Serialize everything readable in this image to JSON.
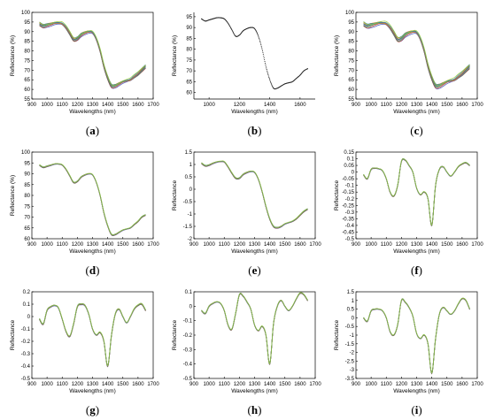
{
  "chart_data": [
    {
      "id": "a",
      "caption": "a",
      "type": "line",
      "xlabel": "Wavelengths (nm)",
      "ylabel": "Reflectance (%)",
      "xlim": [
        900,
        1700
      ],
      "ylim": [
        55,
        100
      ],
      "xticks": [
        900,
        1000,
        1100,
        1200,
        1300,
        1400,
        1500,
        1600,
        1700
      ],
      "yticks": [
        55,
        60,
        65,
        70,
        75,
        80,
        85,
        90,
        95,
        100
      ],
      "ytick_labels": [
        "55",
        "60",
        "65",
        "70",
        "75",
        "80",
        "85",
        "90",
        "95",
        "100"
      ],
      "box": true,
      "colored_bundle": true,
      "bundle_spread": 2.5,
      "x": [
        950,
        975,
        1000,
        1025,
        1050,
        1075,
        1100,
        1125,
        1150,
        1175,
        1200,
        1225,
        1250,
        1275,
        1300,
        1325,
        1350,
        1375,
        1400,
        1425,
        1450,
        1475,
        1500,
        1525,
        1550,
        1575,
        1600,
        1625,
        1650
      ],
      "y": [
        94,
        93,
        93.5,
        94,
        94.5,
        94.5,
        94,
        92,
        89,
        86,
        86.5,
        88.5,
        89.5,
        90,
        89.5,
        86,
        80,
        72,
        66,
        62,
        62,
        63,
        64,
        64.5,
        65,
        66.5,
        68,
        70,
        72
      ]
    },
    {
      "id": "b",
      "caption": "b",
      "type": "scatter",
      "xlabel": "Wavelengths (nm)",
      "ylabel": "Reflectance (%)",
      "xlim": [
        900,
        1700
      ],
      "ylim": [
        57,
        97
      ],
      "xticks": [
        1000,
        1200,
        1400,
        1600
      ],
      "yticks": [
        60,
        65,
        70,
        75,
        80,
        85,
        90,
        95
      ],
      "ytick_labels": [
        "60",
        "65",
        "70",
        "75",
        "80",
        "85",
        "90",
        "95"
      ],
      "box": false,
      "dotted": true,
      "x": [
        950,
        975,
        1000,
        1025,
        1050,
        1075,
        1100,
        1125,
        1150,
        1175,
        1200,
        1225,
        1250,
        1275,
        1300,
        1325,
        1350,
        1375,
        1400,
        1425,
        1450,
        1475,
        1500,
        1525,
        1550,
        1575,
        1600,
        1625,
        1650
      ],
      "y": [
        94,
        93,
        93.5,
        94,
        94.5,
        94.5,
        94,
        92,
        89,
        86,
        86.5,
        88.5,
        89.5,
        90,
        89.5,
        86,
        80,
        72,
        66,
        62,
        62,
        63,
        64,
        64.5,
        65,
        66.5,
        68,
        70,
        71
      ]
    },
    {
      "id": "c",
      "caption": "c",
      "type": "line",
      "xlabel": "Wavelengths (nm)",
      "ylabel": "Reflectance (%)",
      "xlim": [
        900,
        1700
      ],
      "ylim": [
        55,
        100
      ],
      "xticks": [
        900,
        1000,
        1100,
        1200,
        1300,
        1400,
        1500,
        1600,
        1700
      ],
      "yticks": [
        55,
        60,
        65,
        70,
        75,
        80,
        85,
        90,
        95,
        100
      ],
      "ytick_labels": [
        "55",
        "60",
        "65",
        "70",
        "75",
        "80",
        "85",
        "90",
        "95",
        "100"
      ],
      "box": true,
      "colored_bundle": true,
      "bundle_spread": 3.0,
      "x": [
        950,
        975,
        1000,
        1025,
        1050,
        1075,
        1100,
        1125,
        1150,
        1175,
        1200,
        1225,
        1250,
        1275,
        1300,
        1325,
        1350,
        1375,
        1400,
        1425,
        1450,
        1475,
        1500,
        1525,
        1550,
        1575,
        1600,
        1625,
        1650
      ],
      "y": [
        94,
        93,
        93.5,
        94,
        94.5,
        94.5,
        94,
        92,
        89,
        86,
        86.5,
        88.5,
        89.5,
        90,
        89.5,
        86,
        80,
        72,
        66,
        62,
        62,
        63,
        64,
        64.5,
        65,
        66.5,
        68,
        70,
        72
      ]
    },
    {
      "id": "d",
      "caption": "d",
      "type": "line",
      "xlabel": "Wavelengths (nm)",
      "ylabel": "Reflectance (%)",
      "xlim": [
        900,
        1700
      ],
      "ylim": [
        60,
        100
      ],
      "xticks": [
        900,
        1000,
        1100,
        1200,
        1300,
        1400,
        1500,
        1600,
        1700
      ],
      "yticks": [
        60,
        65,
        70,
        75,
        80,
        85,
        90,
        95,
        100
      ],
      "ytick_labels": [
        "60",
        "65",
        "70",
        "75",
        "80",
        "85",
        "90",
        "95",
        "100"
      ],
      "box": true,
      "colored_bundle": true,
      "bundle_spread": 0.6,
      "x": [
        950,
        975,
        1000,
        1025,
        1050,
        1075,
        1100,
        1125,
        1150,
        1175,
        1200,
        1225,
        1250,
        1275,
        1300,
        1325,
        1350,
        1375,
        1400,
        1425,
        1450,
        1475,
        1500,
        1525,
        1550,
        1575,
        1600,
        1625,
        1650
      ],
      "y": [
        94,
        93,
        93.5,
        94,
        94.5,
        94.5,
        94,
        92,
        89,
        86,
        86.5,
        88.5,
        89.5,
        90,
        89.5,
        86,
        80,
        72,
        66,
        62,
        62,
        63,
        64,
        64.5,
        65,
        66.5,
        68,
        70,
        71
      ]
    },
    {
      "id": "e",
      "caption": "e",
      "type": "line",
      "xlabel": "Wavelengths (nm)",
      "ylabel": "Reflectance",
      "xlim": [
        900,
        1700
      ],
      "ylim": [
        -2,
        1.5
      ],
      "xticks": [
        900,
        1000,
        1100,
        1200,
        1300,
        1400,
        1500,
        1600,
        1700
      ],
      "yticks": [
        -2,
        -1.5,
        -1,
        -0.5,
        0,
        0.5,
        1,
        1.5
      ],
      "ytick_labels": [
        "-2",
        "-1.5",
        "-1",
        "-0.5",
        "0",
        "0.5",
        "1",
        "1.5"
      ],
      "box": true,
      "colored_bundle": true,
      "bundle_spread": 0.06,
      "x": [
        950,
        975,
        1000,
        1025,
        1050,
        1075,
        1100,
        1125,
        1150,
        1175,
        1200,
        1225,
        1250,
        1275,
        1300,
        1325,
        1350,
        1375,
        1400,
        1425,
        1450,
        1475,
        1500,
        1525,
        1550,
        1575,
        1600,
        1625,
        1650
      ],
      "y": [
        1.05,
        0.95,
        0.98,
        1.05,
        1.1,
        1.12,
        1.1,
        0.9,
        0.65,
        0.45,
        0.45,
        0.6,
        0.68,
        0.72,
        0.68,
        0.4,
        -0.1,
        -0.7,
        -1.2,
        -1.5,
        -1.55,
        -1.5,
        -1.4,
        -1.35,
        -1.3,
        -1.2,
        -1.05,
        -0.9,
        -0.8
      ]
    },
    {
      "id": "f",
      "caption": "f",
      "type": "line",
      "xlabel": "Wavelengths (nm)",
      "ylabel": "Reflectance",
      "xlim": [
        900,
        1700
      ],
      "ylim": [
        -0.5,
        0.15
      ],
      "xticks": [
        900,
        1000,
        1100,
        1200,
        1300,
        1400,
        1500,
        1600,
        1700
      ],
      "yticks": [
        -0.5,
        -0.45,
        -0.4,
        -0.35,
        -0.3,
        -0.25,
        -0.2,
        -0.15,
        -0.1,
        -0.05,
        0,
        0.05,
        0.1,
        0.15
      ],
      "ytick_labels": [
        "-0.5",
        "-0.45",
        "-0.4",
        "-0.35",
        "-0.3",
        "-0.25",
        "-0.2",
        "-0.15",
        "-0.1",
        "-0.05",
        "0",
        "0.05",
        "0.1",
        "0.15"
      ],
      "box": true,
      "colored_bundle": true,
      "bundle_spread": 0.008,
      "x": [
        950,
        975,
        1000,
        1025,
        1050,
        1075,
        1100,
        1125,
        1150,
        1175,
        1200,
        1225,
        1250,
        1275,
        1300,
        1325,
        1350,
        1375,
        1400,
        1425,
        1450,
        1475,
        1500,
        1525,
        1550,
        1575,
        1600,
        1625,
        1650
      ],
      "y": [
        -0.02,
        -0.05,
        0.02,
        0.03,
        0.025,
        0.01,
        -0.05,
        -0.15,
        -0.18,
        -0.1,
        0.08,
        0.09,
        0.05,
        0.0,
        -0.12,
        -0.17,
        -0.15,
        -0.2,
        -0.4,
        -0.1,
        0.02,
        0.04,
        0.0,
        -0.03,
        0.0,
        0.04,
        0.06,
        0.07,
        0.05
      ]
    },
    {
      "id": "g",
      "caption": "g",
      "type": "line",
      "xlabel": "Wavelengths (nm)",
      "ylabel": "Reflectance",
      "xlim": [
        900,
        1700
      ],
      "ylim": [
        -0.5,
        0.2
      ],
      "xticks": [
        900,
        1000,
        1100,
        1200,
        1300,
        1400,
        1500,
        1600,
        1700
      ],
      "yticks": [
        -0.5,
        -0.4,
        -0.3,
        -0.2,
        -0.1,
        0,
        0.1,
        0.2
      ],
      "ytick_labels": [
        "-0.5",
        "-0.4",
        "-0.3",
        "-0.2",
        "-0.1",
        "0",
        "0.1",
        "0.2"
      ],
      "box": true,
      "colored_bundle": true,
      "bundle_spread": 0.012,
      "x": [
        950,
        975,
        1000,
        1025,
        1050,
        1075,
        1100,
        1125,
        1150,
        1175,
        1200,
        1225,
        1250,
        1275,
        1300,
        1325,
        1350,
        1375,
        1400,
        1425,
        1450,
        1475,
        1500,
        1525,
        1550,
        1575,
        1600,
        1625,
        1650
      ],
      "y": [
        -0.02,
        -0.06,
        0.05,
        0.08,
        0.09,
        0.07,
        -0.02,
        -0.12,
        -0.16,
        -0.06,
        0.08,
        0.1,
        0.09,
        0.02,
        -0.1,
        -0.15,
        -0.13,
        -0.2,
        -0.4,
        -0.15,
        0.02,
        0.06,
        0.0,
        -0.05,
        0.0,
        0.06,
        0.09,
        0.1,
        0.05
      ]
    },
    {
      "id": "h",
      "caption": "h",
      "type": "line",
      "xlabel": "Wavelengths (nm)",
      "ylabel": "Reflectance",
      "xlim": [
        900,
        1700
      ],
      "ylim": [
        -0.5,
        0.1
      ],
      "xticks": [
        900,
        1000,
        1100,
        1200,
        1300,
        1400,
        1500,
        1600,
        1700
      ],
      "yticks": [
        -0.5,
        -0.4,
        -0.3,
        -0.2,
        -0.1,
        0,
        0.1
      ],
      "ytick_labels": [
        "-0.5",
        "-0.4",
        "-0.3",
        "-0.2",
        "-0.1",
        "0",
        "0.1"
      ],
      "box": true,
      "colored_bundle": true,
      "bundle_spread": 0.008,
      "x": [
        950,
        975,
        1000,
        1025,
        1050,
        1075,
        1100,
        1125,
        1150,
        1175,
        1200,
        1225,
        1250,
        1275,
        1300,
        1325,
        1350,
        1375,
        1400,
        1425,
        1450,
        1475,
        1500,
        1525,
        1550,
        1575,
        1600,
        1625,
        1650
      ],
      "y": [
        -0.03,
        -0.05,
        0.0,
        0.02,
        0.03,
        0.02,
        -0.03,
        -0.13,
        -0.16,
        -0.05,
        0.08,
        0.07,
        0.03,
        -0.02,
        -0.13,
        -0.17,
        -0.14,
        -0.2,
        -0.4,
        -0.12,
        0.0,
        0.04,
        0.0,
        -0.03,
        0.0,
        0.05,
        0.09,
        0.08,
        0.04
      ]
    },
    {
      "id": "i",
      "caption": "i",
      "type": "line",
      "xlabel": "Wavelengths (nm)",
      "ylabel": "Reflectance",
      "xlim": [
        900,
        1700
      ],
      "ylim": [
        -3.5,
        1.5
      ],
      "xticks": [
        900,
        1000,
        1100,
        1200,
        1300,
        1400,
        1500,
        1600,
        1700
      ],
      "yticks": [
        -3.5,
        -3,
        -2.5,
        -2,
        -1.5,
        -1,
        -0.5,
        0,
        0.5,
        1,
        1.5
      ],
      "ytick_labels": [
        "-3.5",
        "-3",
        "-2.5",
        "-2",
        "-1.5",
        "-1",
        "-0.5",
        "0",
        "0.5",
        "1",
        "1.5"
      ],
      "box": true,
      "colored_bundle": true,
      "bundle_spread": 0.06,
      "x": [
        950,
        975,
        1000,
        1025,
        1050,
        1075,
        1100,
        1125,
        1150,
        1175,
        1200,
        1225,
        1250,
        1275,
        1300,
        1325,
        1350,
        1375,
        1400,
        1425,
        1450,
        1475,
        1500,
        1525,
        1550,
        1575,
        1600,
        1625,
        1650
      ],
      "y": [
        0.0,
        -0.2,
        0.4,
        0.5,
        0.5,
        0.4,
        0.0,
        -0.8,
        -1.0,
        -0.4,
        1.0,
        0.9,
        0.6,
        0.1,
        -0.9,
        -1.2,
        -1.0,
        -1.5,
        -3.2,
        -1.2,
        0.2,
        0.6,
        0.4,
        0.2,
        0.4,
        0.8,
        1.1,
        1.0,
        0.5
      ]
    }
  ],
  "colors": {
    "bundle": [
      "#3b4fb8",
      "#c0392b",
      "#2e8b57",
      "#8e44ad",
      "#d4a017",
      "#17a2b8",
      "#555555",
      "#e67e22",
      "#1f77b4",
      "#9acd32"
    ],
    "dots": "#222222",
    "axis": "#000000"
  }
}
